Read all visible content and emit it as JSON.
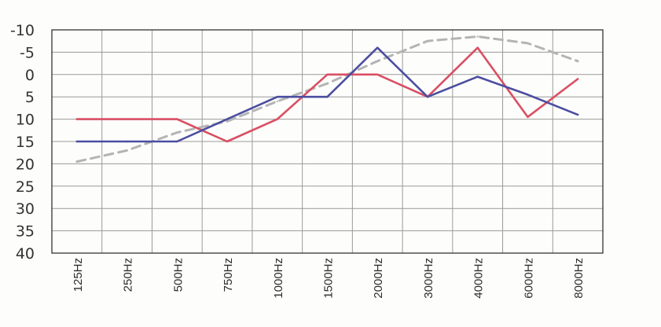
{
  "chart_data": {
    "type": "line",
    "categories": [
      "125Hz",
      "250Hz",
      "500Hz",
      "750Hz",
      "1000Hz",
      "1500Hz",
      "2000Hz",
      "3000Hz",
      "4000Hz",
      "6000Hz",
      "8000Hz"
    ],
    "y_ticks": [
      "-10",
      "-5",
      "0",
      "5",
      "10",
      "15",
      "20",
      "25",
      "30",
      "35",
      "40"
    ],
    "ylim": [
      -10,
      40
    ],
    "y_inverted": true,
    "grid": true,
    "series": [
      {
        "color": "#d94f63",
        "style": "solid",
        "values": [
          10,
          10,
          10,
          15,
          10,
          0,
          0,
          5,
          -6,
          9.5,
          1
        ]
      },
      {
        "color": "#4c4ea0",
        "style": "solid",
        "values": [
          15,
          15,
          15,
          10,
          5,
          5,
          -6,
          5,
          0.5,
          4.5,
          9
        ]
      },
      {
        "color": "#b4b4b4",
        "style": "dashed",
        "values": [
          19.5,
          17,
          13,
          10.5,
          6,
          2,
          -3,
          -7.5,
          -8.5,
          -7,
          -3
        ]
      }
    ]
  }
}
